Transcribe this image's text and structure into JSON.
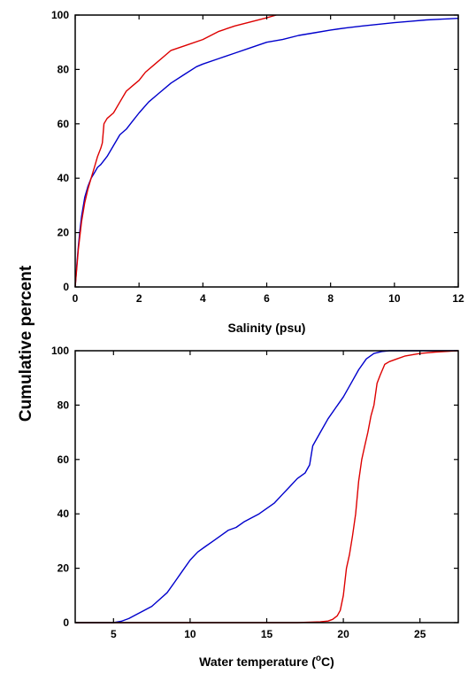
{
  "shared_ylabel": "Cumulative percent",
  "chart_data": [
    {
      "type": "line",
      "xlabel": "Salinity (psu)",
      "ylabel": "",
      "xlim": [
        0,
        12
      ],
      "ylim": [
        0,
        100
      ],
      "xticks": [
        0,
        2,
        4,
        6,
        8,
        10,
        12
      ],
      "yticks": [
        0,
        20,
        40,
        60,
        80,
        100
      ],
      "grid": false,
      "series": [
        {
          "color": "#0000cc",
          "x": [
            0,
            0.05,
            0.1,
            0.15,
            0.2,
            0.3,
            0.4,
            0.5,
            0.6,
            0.7,
            0.8,
            1.0,
            1.2,
            1.4,
            1.6,
            1.8,
            2.0,
            2.3,
            2.6,
            3.0,
            3.4,
            3.8,
            4.0,
            4.5,
            5.0,
            5.5,
            6.0,
            6.5,
            7.0,
            7.5,
            8.0,
            8.5,
            9.0,
            9.5,
            10.0,
            10.5,
            11.0,
            11.5,
            12.0
          ],
          "y": [
            0,
            8,
            15,
            21,
            26,
            33,
            37,
            40,
            42,
            44,
            45,
            48,
            52,
            56,
            58,
            61,
            64,
            68,
            71,
            75,
            78,
            81,
            82,
            84,
            86,
            88,
            90,
            91,
            92.5,
            93.5,
            94.5,
            95.3,
            96,
            96.6,
            97.2,
            97.7,
            98.2,
            98.5,
            98.8
          ]
        },
        {
          "color": "#dd0000",
          "x": [
            0,
            0.05,
            0.1,
            0.2,
            0.3,
            0.4,
            0.5,
            0.6,
            0.7,
            0.8,
            0.85,
            0.9,
            0.95,
            1.0,
            1.2,
            1.4,
            1.6,
            1.8,
            2.0,
            2.2,
            2.5,
            2.8,
            3.0,
            3.5,
            4.0,
            4.5,
            5.0,
            5.5,
            6.0,
            6.3
          ],
          "y": [
            0,
            7,
            14,
            24,
            31,
            36,
            40,
            44,
            48,
            51,
            53,
            60,
            61,
            62,
            64,
            68,
            72,
            74,
            76,
            79,
            82,
            85,
            87,
            89,
            91,
            94,
            96,
            97.5,
            99,
            100
          ]
        }
      ]
    },
    {
      "type": "line",
      "xlabel": "Water temperature (°C)",
      "ylabel": "",
      "xlim": [
        2.5,
        27.5
      ],
      "ylim": [
        0,
        100
      ],
      "xticks": [
        5,
        10,
        15,
        20,
        25
      ],
      "yticks": [
        0,
        20,
        40,
        60,
        80,
        100
      ],
      "grid": false,
      "series": [
        {
          "color": "#0000cc",
          "x": [
            2.5,
            5.0,
            5.5,
            6.0,
            6.5,
            7.0,
            7.5,
            8.0,
            8.5,
            9.0,
            9.5,
            10.0,
            10.5,
            11.0,
            11.5,
            12.0,
            12.5,
            13.0,
            13.5,
            14.0,
            14.5,
            15.0,
            15.5,
            16.0,
            16.5,
            17.0,
            17.5,
            17.8,
            18.0,
            18.5,
            19.0,
            19.5,
            20.0,
            20.5,
            21.0,
            21.5,
            22.0,
            22.5,
            23.0,
            27.5
          ],
          "y": [
            0,
            0,
            0.5,
            1.5,
            3,
            4.5,
            6,
            8.5,
            11,
            15,
            19,
            23,
            26,
            28,
            30,
            32,
            34,
            35,
            37,
            38.5,
            40,
            42,
            44,
            47,
            50,
            53,
            55,
            58,
            65,
            70,
            75,
            79,
            83,
            88,
            93,
            97,
            99,
            99.7,
            100,
            100
          ]
        },
        {
          "color": "#dd0000",
          "x": [
            2.5,
            17.0,
            18.5,
            19.0,
            19.3,
            19.6,
            19.8,
            20.0,
            20.2,
            20.4,
            20.6,
            20.8,
            21.0,
            21.2,
            21.4,
            21.6,
            21.8,
            22.0,
            22.2,
            22.4,
            22.7,
            23.0,
            23.5,
            24.0,
            25.0,
            26.0,
            27.5
          ],
          "y": [
            0,
            0,
            0.3,
            0.6,
            1.2,
            2.5,
            4.5,
            10,
            20,
            25,
            32,
            40,
            52,
            60,
            65,
            70,
            76,
            80,
            88,
            91,
            95,
            96,
            97,
            98,
            99,
            99.5,
            100
          ]
        }
      ]
    }
  ]
}
